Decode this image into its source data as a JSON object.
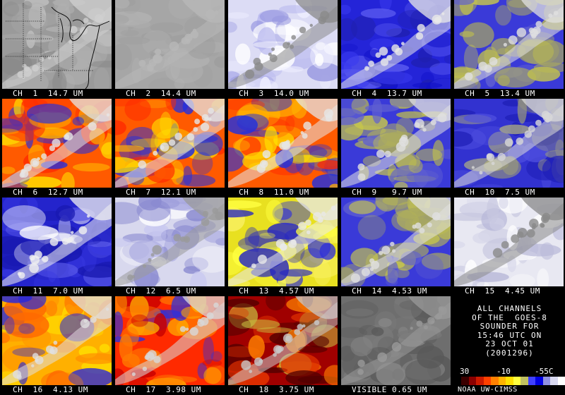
{
  "panels": [
    {
      "caption": "CH  1  14.7 UM",
      "style": "gray-light",
      "icon": "us-map-outline"
    },
    {
      "caption": "CH  2  14.4 UM",
      "style": "gray-flat"
    },
    {
      "caption": "CH  3  14.0 UM",
      "style": "white-blue"
    },
    {
      "caption": "CH  4  13.7 UM",
      "style": "blue"
    },
    {
      "caption": "CH  5  13.4 UM",
      "style": "blue-yellow"
    },
    {
      "caption": "CH  6  12.7 UM",
      "style": "hot"
    },
    {
      "caption": "CH  7  12.1 UM",
      "style": "hot"
    },
    {
      "caption": "CH  8  11.0 UM",
      "style": "hot"
    },
    {
      "caption": "CH  9   9.7 UM",
      "style": "blue-yellow"
    },
    {
      "caption": "CH  10  7.5 UM",
      "style": "blue-gray"
    },
    {
      "caption": "CH  11  7.0 UM",
      "style": "blue-deep"
    },
    {
      "caption": "CH  12  6.5 UM",
      "style": "white-pale"
    },
    {
      "caption": "CH  13  4.57 UM",
      "style": "yellow-blue"
    },
    {
      "caption": "CH  14  4.53 UM",
      "style": "blue-yellow"
    },
    {
      "caption": "CH  15  4.45 UM",
      "style": "white-noise"
    },
    {
      "caption": "CH  16  4.13 UM",
      "style": "yellow-hot"
    },
    {
      "caption": "CH  17  3.98 UM",
      "style": "red-hot"
    },
    {
      "caption": "CH  18  3.75 UM",
      "style": "dark-red"
    },
    {
      "caption": "VISIBLE 0.65 UM",
      "style": "gray-dark"
    }
  ],
  "info": {
    "lines": [
      "ALL CHANNELS",
      "OF THE  GOES-8",
      "SOUNDER FOR",
      "15:46 UTC ON",
      "23 OCT 01",
      "(2001296)"
    ],
    "scale_labels": [
      "30",
      "-10",
      "-55C"
    ],
    "scale_colors": [
      "#000000",
      "#3a0000",
      "#8b0000",
      "#cc1a00",
      "#ff4000",
      "#ff8000",
      "#ffb300",
      "#ffe000",
      "#ffff40",
      "#c0c060",
      "#4040ff",
      "#0000e0",
      "#9090e0",
      "#d8d8f0",
      "#ffffff"
    ],
    "credit": "NOAA UW-CIMSS"
  }
}
